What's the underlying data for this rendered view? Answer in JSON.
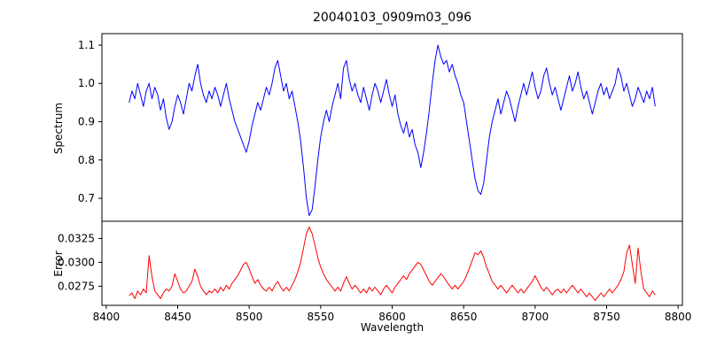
{
  "title": "20040103_0909m03_096",
  "chart_data": [
    {
      "type": "line",
      "name": "spectrum",
      "color": "#0000ff",
      "ylabel": "Spectrum",
      "xlim": [
        8397,
        8803
      ],
      "ylim": [
        0.64,
        1.13
      ],
      "yticks": [
        0.7,
        0.8,
        0.9,
        1.0,
        1.1
      ],
      "ytick_labels": [
        "0.7",
        "0.8",
        "0.9",
        "1.0",
        "1.1"
      ],
      "xticks": [],
      "xtick_labels": [],
      "x_start": 8416,
      "x_step": 2,
      "y": [
        0.95,
        0.98,
        0.96,
        1.0,
        0.97,
        0.94,
        0.98,
        1.0,
        0.96,
        0.99,
        0.97,
        0.93,
        0.96,
        0.91,
        0.88,
        0.9,
        0.94,
        0.97,
        0.95,
        0.92,
        0.96,
        1.0,
        0.98,
        1.02,
        1.05,
        1.0,
        0.97,
        0.95,
        0.98,
        0.96,
        0.99,
        0.97,
        0.94,
        0.97,
        1.0,
        0.96,
        0.93,
        0.9,
        0.88,
        0.86,
        0.84,
        0.82,
        0.85,
        0.89,
        0.92,
        0.95,
        0.93,
        0.96,
        0.99,
        0.97,
        1.0,
        1.04,
        1.06,
        1.02,
        0.98,
        1.0,
        0.96,
        0.98,
        0.94,
        0.9,
        0.85,
        0.78,
        0.7,
        0.655,
        0.67,
        0.73,
        0.8,
        0.86,
        0.9,
        0.93,
        0.9,
        0.94,
        0.97,
        1.0,
        0.96,
        1.04,
        1.06,
        1.01,
        0.98,
        1.0,
        0.97,
        0.95,
        0.99,
        0.96,
        0.93,
        0.97,
        1.0,
        0.98,
        0.95,
        0.98,
        1.01,
        0.97,
        0.94,
        0.97,
        0.92,
        0.89,
        0.87,
        0.9,
        0.86,
        0.88,
        0.84,
        0.82,
        0.78,
        0.82,
        0.87,
        0.93,
        1.0,
        1.06,
        1.1,
        1.07,
        1.05,
        1.06,
        1.03,
        1.05,
        1.02,
        1.0,
        0.97,
        0.95,
        0.9,
        0.85,
        0.8,
        0.75,
        0.72,
        0.71,
        0.74,
        0.8,
        0.86,
        0.9,
        0.93,
        0.96,
        0.92,
        0.95,
        0.98,
        0.96,
        0.93,
        0.9,
        0.94,
        0.97,
        1.0,
        0.97,
        1.0,
        1.03,
        0.99,
        0.96,
        0.98,
        1.02,
        1.04,
        1.0,
        0.97,
        0.99,
        0.96,
        0.93,
        0.96,
        0.99,
        1.02,
        0.98,
        1.0,
        1.03,
        0.99,
        0.96,
        0.98,
        0.95,
        0.92,
        0.95,
        0.98,
        1.0,
        0.97,
        0.99,
        0.96,
        0.98,
        1.0,
        1.04,
        1.02,
        0.98,
        1.0,
        0.97,
        0.94,
        0.96,
        0.99,
        0.97,
        0.95,
        0.98,
        0.96,
        0.99,
        0.94
      ]
    },
    {
      "type": "line",
      "name": "error",
      "color": "#ff0000",
      "ylabel": "Error",
      "xlabel": "Wavelength",
      "xlim": [
        8397,
        8803
      ],
      "ylim": [
        0.0255,
        0.0343
      ],
      "yticks": [
        0.0275,
        0.03,
        0.0325
      ],
      "ytick_labels": [
        "0.0275",
        "0.0300",
        "0.0325"
      ],
      "xticks": [
        8400,
        8450,
        8500,
        8550,
        8600,
        8650,
        8700,
        8750,
        8800
      ],
      "xtick_labels": [
        "8400",
        "8450",
        "8500",
        "8550",
        "8600",
        "8650",
        "8700",
        "8750",
        "8800"
      ],
      "x_start": 8416,
      "x_step": 2,
      "y": [
        0.0265,
        0.0268,
        0.0262,
        0.027,
        0.0266,
        0.0272,
        0.0268,
        0.0307,
        0.0285,
        0.027,
        0.0266,
        0.0262,
        0.0268,
        0.0272,
        0.027,
        0.0275,
        0.0288,
        0.028,
        0.0272,
        0.0268,
        0.027,
        0.0275,
        0.028,
        0.0293,
        0.0285,
        0.0275,
        0.027,
        0.0266,
        0.027,
        0.0268,
        0.0272,
        0.0268,
        0.0274,
        0.027,
        0.0276,
        0.0272,
        0.0278,
        0.0282,
        0.0286,
        0.0292,
        0.0298,
        0.03,
        0.0293,
        0.0285,
        0.0278,
        0.0282,
        0.0276,
        0.0272,
        0.027,
        0.0274,
        0.027,
        0.0276,
        0.028,
        0.0274,
        0.027,
        0.0274,
        0.027,
        0.0276,
        0.0282,
        0.029,
        0.03,
        0.0315,
        0.033,
        0.0337,
        0.033,
        0.0318,
        0.0305,
        0.0295,
        0.0288,
        0.0282,
        0.0278,
        0.0274,
        0.027,
        0.0274,
        0.027,
        0.0278,
        0.0285,
        0.0278,
        0.0272,
        0.0276,
        0.0272,
        0.0268,
        0.0272,
        0.0268,
        0.0274,
        0.027,
        0.0274,
        0.027,
        0.0266,
        0.0272,
        0.0276,
        0.0272,
        0.0268,
        0.0274,
        0.0278,
        0.0282,
        0.0286,
        0.0282,
        0.0288,
        0.0292,
        0.0296,
        0.03,
        0.0298,
        0.0292,
        0.0286,
        0.028,
        0.0276,
        0.028,
        0.0284,
        0.0288,
        0.0285,
        0.028,
        0.0276,
        0.0272,
        0.0276,
        0.0272,
        0.0276,
        0.028,
        0.0286,
        0.0294,
        0.0302,
        0.031,
        0.0308,
        0.0312,
        0.0305,
        0.0295,
        0.0288,
        0.028,
        0.0276,
        0.0272,
        0.0276,
        0.0272,
        0.0268,
        0.0272,
        0.0276,
        0.0272,
        0.0268,
        0.0272,
        0.0268,
        0.0272,
        0.0276,
        0.028,
        0.0286,
        0.028,
        0.0274,
        0.027,
        0.0274,
        0.027,
        0.0266,
        0.027,
        0.0272,
        0.0268,
        0.0272,
        0.0268,
        0.0272,
        0.0276,
        0.0272,
        0.0268,
        0.0272,
        0.0268,
        0.0264,
        0.0268,
        0.0264,
        0.026,
        0.0264,
        0.0268,
        0.0264,
        0.0268,
        0.0272,
        0.0268,
        0.0272,
        0.0276,
        0.0282,
        0.029,
        0.031,
        0.0318,
        0.0298,
        0.0278,
        0.0315,
        0.029,
        0.0272,
        0.0268,
        0.0264,
        0.027,
        0.0266
      ]
    }
  ]
}
